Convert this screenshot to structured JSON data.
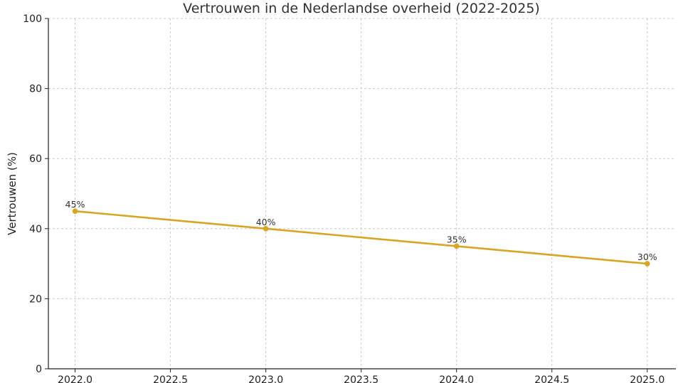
{
  "chart_data": {
    "type": "line",
    "title": "Vertrouwen in de Nederlandse overheid (2022-2025)",
    "xlabel": "",
    "ylabel": "Vertrouwen (%)",
    "x": [
      2022.0,
      2023.0,
      2024.0,
      2025.0
    ],
    "series": [
      {
        "values": [
          45,
          40,
          35,
          30
        ],
        "labels": [
          "45%",
          "40%",
          "35%",
          "30%"
        ],
        "color": "#DAA520"
      }
    ],
    "xlim": [
      2021.86,
      2025.15
    ],
    "ylim": [
      0,
      100
    ],
    "xticks": [
      2022.0,
      2022.5,
      2023.0,
      2023.5,
      2024.0,
      2024.5,
      2025.0
    ],
    "xtick_labels": [
      "2022.0",
      "2022.5",
      "2023.0",
      "2023.5",
      "2024.0",
      "2024.5",
      "2025.0"
    ],
    "yticks": [
      0,
      20,
      40,
      60,
      80,
      100
    ],
    "ytick_labels": [
      "0",
      "20",
      "40",
      "60",
      "80",
      "100"
    ],
    "grid": true,
    "marker": "circle"
  }
}
